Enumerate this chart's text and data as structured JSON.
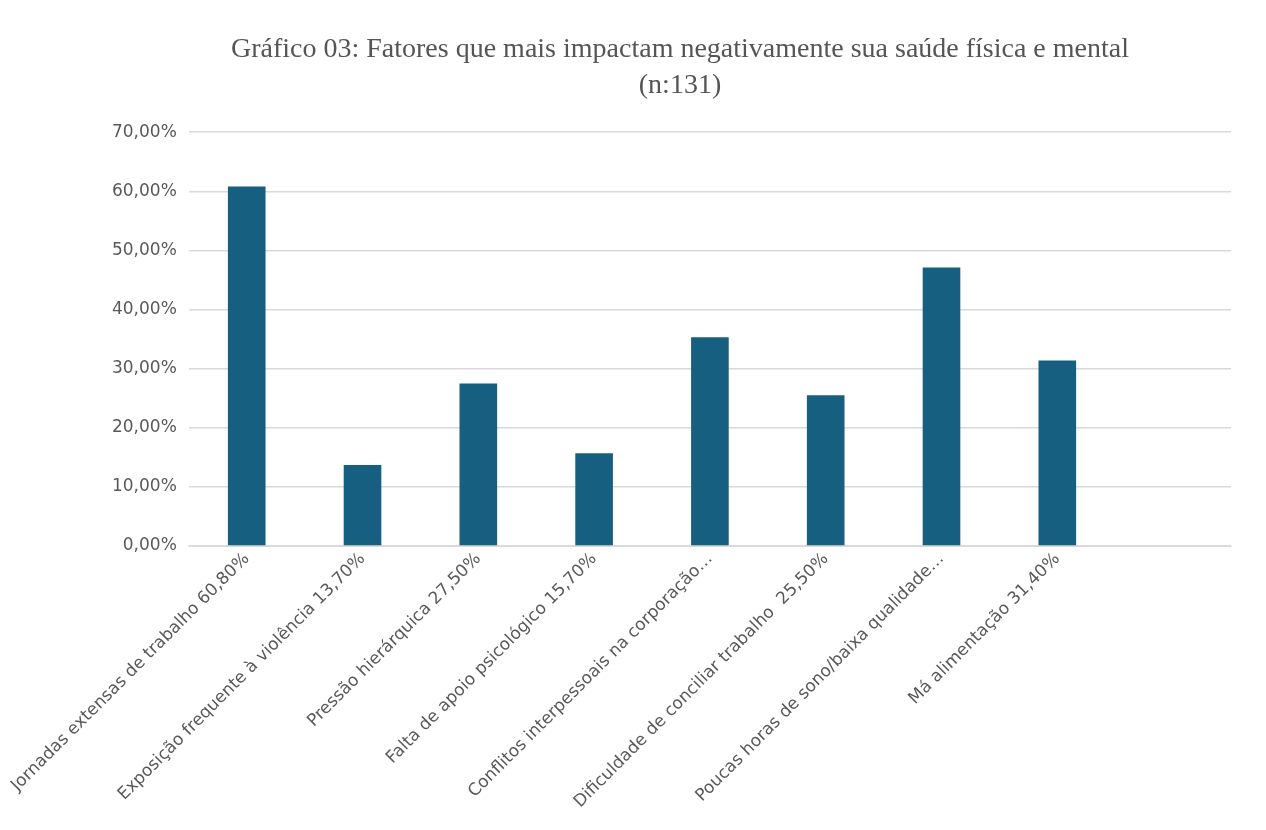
{
  "chart_data": {
    "type": "bar",
    "title": "Gráfico 03: Fatores que mais impactam negativamente sua saúde física e mental (n:131)",
    "categories": [
      "Jornadas extensas de trabalho 60,80%",
      "Exposição frequente à violência 13,70%",
      "Pressão hierárquica 27,50%",
      "Falta de apoio psicológico 15,70%",
      "Conflitos interpessoais na corporação…",
      "Dificuldade de conciliar trabalho  25,50%",
      "Poucas horas de sono/baixa qualidade…",
      "Má alimentação 31,40%",
      null
    ],
    "values": [
      60.8,
      13.7,
      27.5,
      15.7,
      35.3,
      25.5,
      47.1,
      31.4,
      null
    ],
    "color": "#175f80",
    "ylim": [
      0,
      70
    ],
    "yticks": [
      {
        "value": 0,
        "label": "0,00%"
      },
      {
        "value": 10,
        "label": "10,00%"
      },
      {
        "value": 20,
        "label": "20,00%"
      },
      {
        "value": 30,
        "label": "30,00%"
      },
      {
        "value": 40,
        "label": "40,00%"
      },
      {
        "value": 50,
        "label": "50,00%"
      },
      {
        "value": 60,
        "label": "60,00%"
      },
      {
        "value": 70,
        "label": "70,00%"
      }
    ],
    "grid": "y",
    "legend": false
  }
}
